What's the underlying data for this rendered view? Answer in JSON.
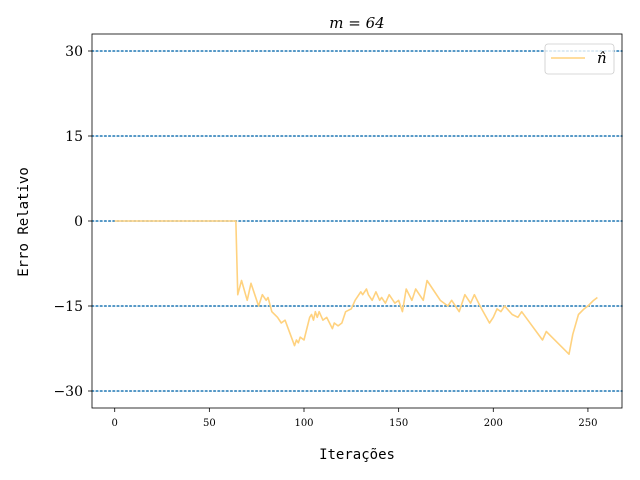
{
  "chart_data": {
    "type": "line",
    "title": "m = 64",
    "xlabel": "Iterações",
    "ylabel": "Erro Relativo",
    "xlim": [
      -12,
      268
    ],
    "ylim": [
      -33,
      33
    ],
    "xticks": [
      0,
      50,
      100,
      150,
      200,
      250
    ],
    "yticks": [
      30,
      15,
      0,
      -15,
      -30
    ],
    "xtick_labels": [
      "0",
      "50",
      "100",
      "150",
      "200",
      "250"
    ],
    "ytick_labels": [
      "30",
      "15",
      "0",
      "−15",
      "−30"
    ],
    "reference_lines": {
      "y": [
        30,
        15,
        0,
        -15,
        -30
      ],
      "style": "dotted",
      "color": "#1f77b4"
    },
    "grid": false,
    "legend_position": "upper right",
    "series": [
      {
        "name": "n̂",
        "color": "#ffd27f",
        "x": [
          0,
          64,
          65,
          67,
          70,
          72,
          76,
          78,
          80,
          81,
          83,
          86,
          88,
          90,
          95,
          96,
          97,
          98,
          100,
          103,
          104,
          105,
          106,
          107,
          108,
          110,
          112,
          115,
          116,
          118,
          120,
          122,
          125,
          127,
          130,
          131,
          133,
          134,
          136,
          138,
          140,
          141,
          143,
          145,
          147,
          148,
          150,
          152,
          154,
          157,
          159,
          161,
          163,
          165,
          168,
          172,
          176,
          178,
          182,
          185,
          188,
          190,
          193,
          198,
          200,
          202,
          204,
          206,
          210,
          213,
          215,
          226,
          228,
          231,
          240,
          242,
          245,
          248,
          250,
          253,
          255
        ],
        "y": [
          0,
          0,
          -13,
          -10.5,
          -14,
          -11,
          -15,
          -13,
          -14,
          -13.5,
          -16,
          -17,
          -18,
          -17.5,
          -22,
          -21,
          -21.5,
          -20.5,
          -21,
          -17,
          -16.5,
          -17.5,
          -16,
          -17,
          -16,
          -17.5,
          -17,
          -19,
          -18,
          -18.5,
          -18,
          -16,
          -15.5,
          -14,
          -12.5,
          -13,
          -12,
          -13,
          -14,
          -12.5,
          -14,
          -13.5,
          -14.5,
          -13,
          -14,
          -14.5,
          -14,
          -16,
          -12,
          -14,
          -12,
          -13,
          -14,
          -10.5,
          -12,
          -14,
          -15,
          -14,
          -16,
          -13,
          -14.5,
          -13,
          -15,
          -18,
          -17,
          -15.5,
          -16,
          -15,
          -16.5,
          -17,
          -16,
          -21,
          -19.5,
          -20.5,
          -23.5,
          -20,
          -16.5,
          -15.5,
          -15,
          -14,
          -13.5
        ]
      }
    ]
  }
}
